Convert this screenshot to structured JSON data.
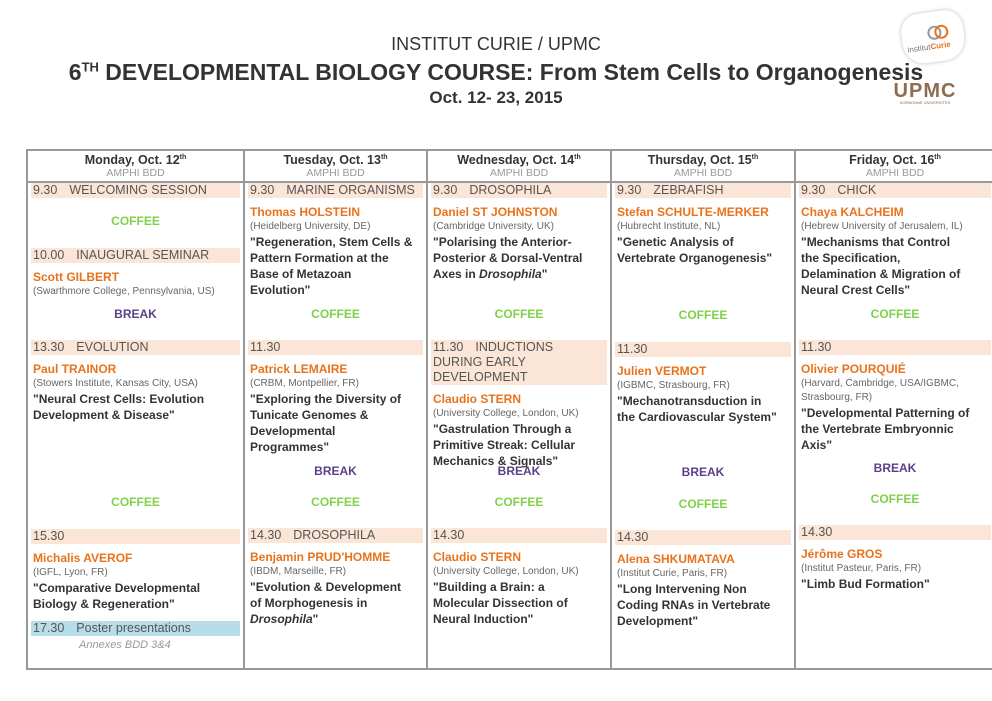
{
  "header": {
    "institution": "INSTITUT CURIE / UPMC",
    "course_prefix": "6",
    "course_sup": "TH",
    "course_title": " DEVELOPMENTAL BIOLOGY COURSE:  From Stem Cells to Organogenesis",
    "dates": "Oct. 12- 23, 2015",
    "logo_curie": "institutCurie",
    "logo_upmc": "UPMC",
    "logo_upmc_sub": "SORBONNE UNIVERSITÉS"
  },
  "colors": {
    "speaker": "#e8731c",
    "coffee": "#7ed14a",
    "break": "#5b3f87",
    "session_band": "#fbe5d6",
    "poster_band": "#b7dde8"
  },
  "days": [
    {
      "day": "Monday, Oct. 12",
      "sup": "th",
      "room": "AMPHI BDD",
      "blocks": [
        {
          "type": "session",
          "time": "9.30",
          "topic": "WELCOMING SESSION"
        },
        {
          "type": "coffee",
          "label": "COFFEE"
        },
        {
          "type": "session",
          "time": "10.00",
          "topic": "INAUGURAL SEMINAR",
          "speaker": "Scott GILBERT",
          "affiliation": "(Swarthmore College, Pennsylvania, US)"
        },
        {
          "type": "break",
          "label": "BREAK"
        },
        {
          "type": "session",
          "time": "13.30",
          "topic": "EVOLUTION",
          "speaker": "Paul TRAINOR",
          "affiliation": "(Stowers Institute, Kansas City, USA)",
          "title": [
            [
              {
                "t": "\"Neural Crest Cells: Evolution"
              }
            ],
            [
              {
                "t": "Development & Disease\""
              }
            ]
          ]
        },
        {
          "type": "coffee",
          "label": "COFFEE"
        },
        {
          "type": "session",
          "time": "15.30",
          "topic": "",
          "speaker": "Michalis AVEROF",
          "affiliation": "(IGFL, Lyon, FR)",
          "title": [
            [
              {
                "t": "\"Comparative Developmental"
              }
            ],
            [
              {
                "t": "Biology & Regeneration\""
              }
            ]
          ]
        },
        {
          "type": "poster",
          "time": "17.30",
          "topic": "Poster presentations",
          "location": "Annexes BDD 3&4"
        }
      ]
    },
    {
      "day": "Tuesday, Oct. 13",
      "sup": "th",
      "room": "AMPHI BDD",
      "blocks": [
        {
          "type": "session",
          "time": "9.30",
          "topic": "MARINE ORGANISMS",
          "speaker": "Thomas HOLSTEIN",
          "affiliation": "(Heidelberg University, DE)",
          "title": [
            [
              {
                "t": "\"Regeneration, Stem Cells &"
              }
            ],
            [
              {
                "t": "Pattern Formation at the"
              }
            ],
            [
              {
                "t": "Base of Metazoan"
              }
            ],
            [
              {
                "t": "Evolution\""
              }
            ]
          ]
        },
        {
          "type": "coffee",
          "label": "COFFEE"
        },
        {
          "type": "session",
          "time": "11.30",
          "topic": "",
          "speaker": "Patrick LEMAIRE",
          "affiliation": "(CRBM, Montpellier, FR)",
          "title": [
            [
              {
                "t": "\"Exploring the Diversity of"
              }
            ],
            [
              {
                "t": "Tunicate Genomes &"
              }
            ],
            [
              {
                "t": "Developmental"
              }
            ],
            [
              {
                "t": "Programmes\""
              }
            ]
          ]
        },
        {
          "type": "break",
          "label": "BREAK"
        },
        {
          "type": "coffee",
          "label": "COFFEE"
        },
        {
          "type": "session",
          "time": "14.30",
          "topic": "DROSOPHILA",
          "speaker": "Benjamin PRUD'HOMME",
          "affiliation": "(IBDM, Marseille, FR)",
          "title": [
            [
              {
                "t": "\"Evolution & Development"
              }
            ],
            [
              {
                "t": "of Morphogenesis in"
              }
            ],
            [
              {
                "t": "Drosophila",
                "i": true
              },
              {
                "t": "\""
              }
            ]
          ]
        }
      ]
    },
    {
      "day": "Wednesday, Oct. 14",
      "sup": "th",
      "room": "AMPHI BDD",
      "blocks": [
        {
          "type": "session",
          "time": "9.30",
          "topic": "DROSOPHILA",
          "speaker": "Daniel ST JOHNSTON",
          "affiliation": "(Cambridge University, UK)",
          "title": [
            [
              {
                "t": "\"Polarising the Anterior-"
              }
            ],
            [
              {
                "t": "Posterior & Dorsal-Ventral"
              }
            ],
            [
              {
                "t": "Axes in "
              },
              {
                "t": "Drosophila",
                "i": true
              },
              {
                "t": "\""
              }
            ]
          ]
        },
        {
          "type": "coffee",
          "label": "COFFEE"
        },
        {
          "type": "session",
          "time": "11.30",
          "topic": "INDUCTIONS DURING EARLY DEVELOPMENT",
          "speaker": "Claudio STERN",
          "affiliation": "(University College, London, UK)",
          "title": [
            [
              {
                "t": "\"Gastrulation Through a"
              }
            ],
            [
              {
                "t": "Primitive Streak: Cellular"
              }
            ],
            [
              {
                "t": "Mechanics & Signals\""
              }
            ]
          ]
        },
        {
          "type": "break",
          "label": "BREAK"
        },
        {
          "type": "coffee",
          "label": "COFFEE"
        },
        {
          "type": "session",
          "time": "14.30",
          "topic": "",
          "speaker": "Claudio STERN",
          "affiliation": "(University College, London, UK)",
          "title": [
            [
              {
                "t": "\"Building a Brain: a"
              }
            ],
            [
              {
                "t": "Molecular Dissection of"
              }
            ],
            [
              {
                "t": "Neural Induction\""
              }
            ]
          ]
        }
      ]
    },
    {
      "day": "Thursday, Oct. 15",
      "sup": "th",
      "room": "AMPHI BDD",
      "blocks": [
        {
          "type": "session",
          "time": "9.30",
          "topic": "ZEBRAFISH",
          "speaker": "Stefan SCHULTE-MERKER",
          "affiliation": "(Hubrecht Institute, NL)",
          "title": [
            [
              {
                "t": "\"Genetic Analysis of"
              }
            ],
            [
              {
                "t": "Vertebrate Organogenesis\""
              }
            ]
          ]
        },
        {
          "type": "coffee",
          "label": "COFFEE"
        },
        {
          "type": "session",
          "time": "11.30",
          "topic": "",
          "speaker": "Julien VERMOT",
          "affiliation": "(IGBMC, Strasbourg, FR)",
          "title": [
            [
              {
                "t": "\"Mechanotransduction in"
              }
            ],
            [
              {
                "t": "the Cardiovascular System\""
              }
            ]
          ]
        },
        {
          "type": "break",
          "label": "BREAK"
        },
        {
          "type": "coffee",
          "label": "COFFEE"
        },
        {
          "type": "session",
          "time": "14.30",
          "topic": "",
          "speaker": "Alena SHKUMATAVA",
          "affiliation": "(Institut Curie, Paris, FR)",
          "title": [
            [
              {
                "t": "\"Long Intervening Non"
              }
            ],
            [
              {
                "t": "Coding RNAs in Vertebrate"
              }
            ],
            [
              {
                "t": "Development\""
              }
            ]
          ]
        }
      ]
    },
    {
      "day": "Friday, Oct. 16",
      "sup": "th",
      "room": "AMPHI BDD",
      "blocks": [
        {
          "type": "session",
          "time": "9.30",
          "topic": "CHICK",
          "speaker": "Chaya KALCHEIM",
          "affiliation": "(Hebrew University of Jerusalem, IL)",
          "title": [
            [
              {
                "t": "\"Mechanisms that Control"
              }
            ],
            [
              {
                "t": "the Specification,"
              }
            ],
            [
              {
                "t": "Delamination & Migration of"
              }
            ],
            [
              {
                "t": "Neural Crest Cells\""
              }
            ]
          ]
        },
        {
          "type": "coffee",
          "label": "COFFEE"
        },
        {
          "type": "session",
          "time": "11.30",
          "topic": "",
          "speaker": "Olivier POURQUIÉ",
          "affiliation": "(Harvard, Cambridge, USA/IGBMC, Strasbourg, FR)",
          "title": [
            [
              {
                "t": "\"Developmental Patterning of"
              }
            ],
            [
              {
                "t": "the Vertebrate Embryonnic"
              }
            ],
            [
              {
                "t": "Axis\""
              }
            ]
          ]
        },
        {
          "type": "break",
          "label": "BREAK"
        },
        {
          "type": "coffee",
          "label": "COFFEE"
        },
        {
          "type": "session",
          "time": "14.30",
          "topic": "",
          "speaker": "Jérôme GROS",
          "affiliation": "(Institut Pasteur, Paris, FR)",
          "title": [
            [
              {
                "t": "\"Limb Bud Formation\""
              }
            ]
          ]
        }
      ]
    }
  ]
}
